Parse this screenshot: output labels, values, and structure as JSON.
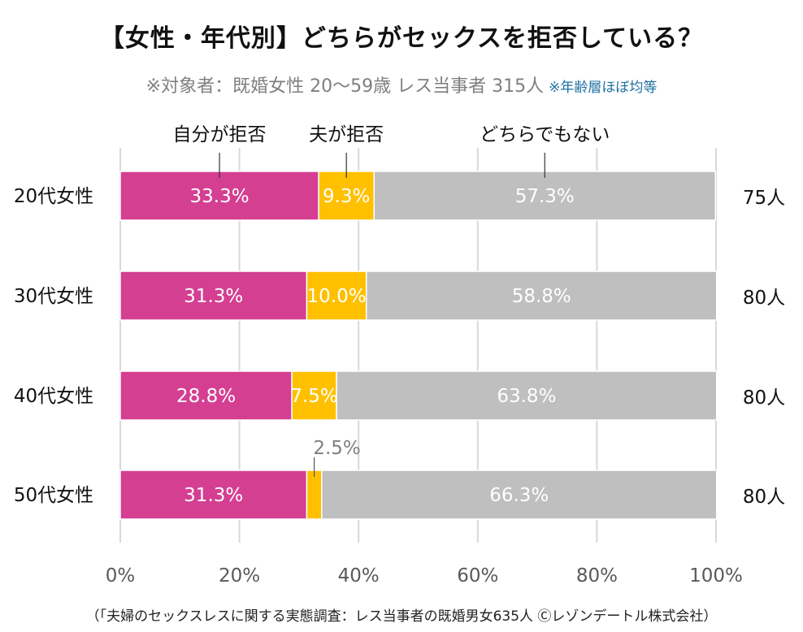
{
  "title": "【女性・年代別】どちらがセックスを拒否している？",
  "subtitle": "※対象者：既婚女性 20〜59歳 レス当事者 315人",
  "subtitle_note": "※年齢層ほぼ均等",
  "footer": "（「夫婦のセックスレスに関する実態調査：レス当事者の既婚男女635人 Ⓒレゾンデートル株式会社）",
  "chart_data": {
    "type": "bar",
    "orientation": "horizontal",
    "stacked": true,
    "title": "【女性・年代別】どちらがセックスを拒否している？",
    "categories": [
      "20代女性",
      "30代女性",
      "40代女性",
      "50代女性"
    ],
    "respondents": [
      "75人",
      "80人",
      "80人",
      "80人"
    ],
    "series": [
      {
        "name": "自分が拒否",
        "values": [
          33.3,
          31.3,
          28.8,
          31.3
        ],
        "labels": [
          "33.3%",
          "31.3%",
          "28.8%",
          "31.3%"
        ],
        "color": "#d43f92"
      },
      {
        "name": "夫が拒否",
        "values": [
          9.3,
          10.0,
          7.5,
          2.5
        ],
        "labels": [
          "9.3%",
          "10.0%",
          "7.5%",
          "2.5%"
        ],
        "color": "#ffc000"
      },
      {
        "name": "どちらでもない",
        "values": [
          57.3,
          58.8,
          63.8,
          66.3
        ],
        "labels": [
          "57.3%",
          "58.8%",
          "63.8%",
          "66.3%"
        ],
        "color": "#bfbfbf"
      }
    ],
    "xlim": [
      0,
      100
    ],
    "xticks": [
      0,
      20,
      40,
      60,
      80,
      100
    ],
    "xtick_labels": [
      "0%",
      "20%",
      "40%",
      "60%",
      "80%",
      "100%"
    ],
    "grid": true,
    "legend": "top, labels above first bar"
  }
}
